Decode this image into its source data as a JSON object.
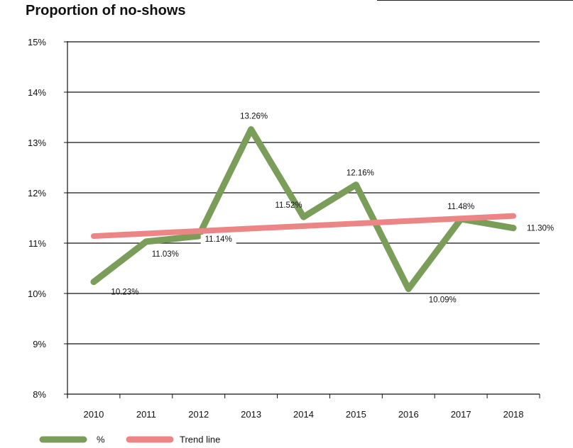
{
  "title": "Proportion of no-shows",
  "chart_data": {
    "type": "line",
    "title": "Proportion of no-shows",
    "xlabel": "",
    "ylabel": "",
    "categories": [
      "2010",
      "2011",
      "2012",
      "2013",
      "2014",
      "2015",
      "2016",
      "2017",
      "2018"
    ],
    "ylim": [
      8,
      15
    ],
    "yticks": [
      "8%",
      "9%",
      "10%",
      "11%",
      "12%",
      "13%",
      "14%",
      "15%"
    ],
    "grid": true,
    "legend_position": "bottom-left",
    "series": [
      {
        "name": "%",
        "color": "#7a9e5a",
        "values": [
          10.23,
          11.03,
          11.14,
          13.26,
          11.52,
          12.16,
          10.09,
          11.48,
          11.3
        ],
        "labels": [
          "10.23%",
          "11.03%",
          "11.14%",
          "13.26%",
          "11.52%",
          "12.16%",
          "10.09%",
          "11.48%",
          "11.30%"
        ]
      },
      {
        "name": "Trend line",
        "color": "#ec8585",
        "values": [
          11.14,
          11.19,
          11.24,
          11.29,
          11.34,
          11.39,
          11.44,
          11.49,
          11.54
        ]
      }
    ]
  }
}
